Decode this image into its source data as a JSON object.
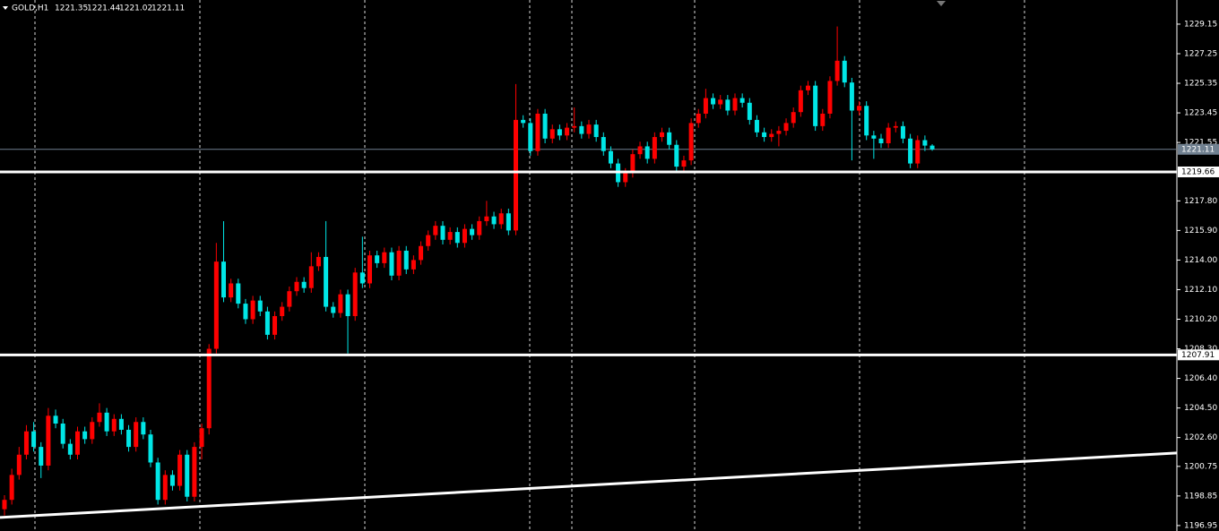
{
  "chart_data": {
    "type": "candlestick",
    "symbol": "GOLD,H1",
    "ylim": [
      1196.6,
      1230.7
    ],
    "yticks": [
      1229.15,
      1227.25,
      1225.35,
      1223.45,
      1221.55,
      {
        "value": 1217.8,
        "label": "1217.80"
      },
      {
        "value": 1215.9,
        "label": "1215.90"
      },
      {
        "value": 1214,
        "label": "1214.00"
      },
      {
        "value": 1212.1,
        "label": "1212.10"
      },
      {
        "value": 1210.2,
        "label": "1210.20"
      },
      {
        "value": 1208.3,
        "label": "1208.30"
      },
      {
        "value": 1206.4,
        "label": "1206.40"
      },
      {
        "value": 1204.5,
        "label": "1204.50"
      },
      {
        "value": 1202.6,
        "label": "1202.60"
      },
      1200.75,
      1198.85,
      1196.95
    ],
    "up_color": "#ff0000",
    "down_color": "#00e6e6",
    "levels": [
      1219.66,
      1207.91
    ],
    "bid": 1221.11,
    "trendline": [
      1197.47,
      1201.61
    ],
    "candles": [
      [
        1198.0,
        1198.9,
        1197.6,
        1198.6
      ],
      [
        1198.6,
        1200.6,
        1198.3,
        1200.2
      ],
      [
        1200.2,
        1202.0,
        1199.9,
        1201.5
      ],
      [
        1201.5,
        1203.4,
        1201.2,
        1203.0
      ],
      [
        1203.0,
        1203.6,
        1201.7,
        1202.0
      ],
      [
        1202.0,
        1202.3,
        1200.0,
        1200.8
      ],
      [
        1200.8,
        1204.5,
        1200.5,
        1204.0
      ],
      [
        1204.0,
        1204.4,
        1203.2,
        1203.5
      ],
      [
        1203.5,
        1203.8,
        1201.9,
        1202.2
      ],
      [
        1202.2,
        1202.5,
        1201.2,
        1201.5
      ],
      [
        1201.5,
        1203.3,
        1201.2,
        1203.0
      ],
      [
        1203.0,
        1203.3,
        1202.2,
        1202.5
      ],
      [
        1202.5,
        1203.9,
        1202.2,
        1203.6
      ],
      [
        1203.6,
        1204.8,
        1203.3,
        1204.2
      ],
      [
        1204.2,
        1204.5,
        1202.7,
        1203.0
      ],
      [
        1203.0,
        1204.1,
        1202.7,
        1203.8
      ],
      [
        1203.8,
        1204.1,
        1202.8,
        1203.1
      ],
      [
        1203.1,
        1203.4,
        1201.7,
        1202.0
      ],
      [
        1202.0,
        1203.9,
        1201.7,
        1203.6
      ],
      [
        1203.6,
        1203.9,
        1202.5,
        1202.8
      ],
      [
        1202.8,
        1203.1,
        1200.7,
        1201.0
      ],
      [
        1201.0,
        1201.3,
        1198.3,
        1198.6
      ],
      [
        1198.6,
        1200.5,
        1198.3,
        1200.2
      ],
      [
        1200.2,
        1200.5,
        1199.2,
        1199.5
      ],
      [
        1199.5,
        1201.8,
        1199.2,
        1201.5
      ],
      [
        1201.5,
        1201.8,
        1198.5,
        1198.8
      ],
      [
        1198.8,
        1202.3,
        1198.5,
        1202.0
      ],
      [
        1202.0,
        1203.5,
        1201.2,
        1203.2
      ],
      [
        1203.2,
        1208.6,
        1202.8,
        1208.3
      ],
      [
        1208.3,
        1215.1,
        1208.0,
        1213.9
      ],
      [
        1213.9,
        1216.5,
        1211.3,
        1211.6
      ],
      [
        1211.6,
        1212.8,
        1211.3,
        1212.5
      ],
      [
        1212.5,
        1212.8,
        1210.9,
        1211.2
      ],
      [
        1211.2,
        1211.5,
        1209.9,
        1210.2
      ],
      [
        1210.2,
        1211.7,
        1209.9,
        1211.4
      ],
      [
        1211.4,
        1211.7,
        1210.4,
        1210.7
      ],
      [
        1210.7,
        1211.0,
        1208.9,
        1209.2
      ],
      [
        1209.2,
        1210.7,
        1208.9,
        1210.4
      ],
      [
        1210.4,
        1211.3,
        1210.1,
        1211.0
      ],
      [
        1211.0,
        1212.3,
        1210.7,
        1212.0
      ],
      [
        1212.0,
        1212.9,
        1211.7,
        1212.6
      ],
      [
        1212.6,
        1212.9,
        1211.9,
        1212.2
      ],
      [
        1212.2,
        1214.5,
        1211.9,
        1213.6
      ],
      [
        1213.6,
        1214.5,
        1213.3,
        1214.2
      ],
      [
        1214.2,
        1216.5,
        1210.7,
        1211.0
      ],
      [
        1211.0,
        1211.3,
        1210.3,
        1210.6
      ],
      [
        1210.6,
        1212.1,
        1210.3,
        1211.8
      ],
      [
        1211.8,
        1212.1,
        1208.0,
        1210.4
      ],
      [
        1210.4,
        1213.5,
        1210.1,
        1213.2
      ],
      [
        1213.2,
        1215.5,
        1212.2,
        1212.5
      ],
      [
        1212.5,
        1214.6,
        1212.2,
        1214.3
      ],
      [
        1214.3,
        1214.6,
        1213.5,
        1213.8
      ],
      [
        1213.8,
        1214.8,
        1213.5,
        1214.5
      ],
      [
        1214.5,
        1214.8,
        1212.7,
        1213.0
      ],
      [
        1213.0,
        1214.9,
        1212.7,
        1214.6
      ],
      [
        1214.6,
        1214.9,
        1213.1,
        1213.4
      ],
      [
        1213.4,
        1214.3,
        1213.1,
        1214.0
      ],
      [
        1214.0,
        1215.2,
        1213.7,
        1214.9
      ],
      [
        1214.9,
        1215.9,
        1214.6,
        1215.6
      ],
      [
        1215.6,
        1216.5,
        1215.3,
        1216.2
      ],
      [
        1216.2,
        1216.5,
        1215.0,
        1215.3
      ],
      [
        1215.3,
        1216.1,
        1215.0,
        1215.8
      ],
      [
        1215.8,
        1216.1,
        1214.8,
        1215.1
      ],
      [
        1215.1,
        1216.3,
        1214.8,
        1216.0
      ],
      [
        1216.0,
        1216.3,
        1215.3,
        1215.6
      ],
      [
        1215.6,
        1216.8,
        1215.3,
        1216.5
      ],
      [
        1216.5,
        1217.8,
        1216.2,
        1216.8
      ],
      [
        1216.8,
        1217.1,
        1216.0,
        1216.3
      ],
      [
        1216.3,
        1217.3,
        1216.0,
        1217.0
      ],
      [
        1217.0,
        1217.3,
        1215.6,
        1215.9
      ],
      [
        1215.9,
        1225.3,
        1215.6,
        1223.0
      ],
      [
        1223.0,
        1223.3,
        1222.5,
        1222.8
      ],
      [
        1222.8,
        1223.1,
        1220.7,
        1221.0
      ],
      [
        1221.0,
        1223.7,
        1220.7,
        1223.4
      ],
      [
        1223.4,
        1223.7,
        1221.5,
        1221.8
      ],
      [
        1221.8,
        1222.7,
        1221.5,
        1222.4
      ],
      [
        1222.4,
        1222.7,
        1221.7,
        1222.0
      ],
      [
        1222.0,
        1222.8,
        1221.7,
        1222.5
      ],
      [
        1222.5,
        1223.8,
        1222.2,
        1222.6
      ],
      [
        1222.6,
        1222.9,
        1221.8,
        1222.1
      ],
      [
        1222.1,
        1223.0,
        1221.8,
        1222.7
      ],
      [
        1222.7,
        1223.0,
        1221.6,
        1221.9
      ],
      [
        1221.9,
        1222.2,
        1220.7,
        1221.0
      ],
      [
        1221.0,
        1221.3,
        1219.9,
        1220.2
      ],
      [
        1220.2,
        1220.5,
        1218.7,
        1219.0
      ],
      [
        1219.0,
        1219.9,
        1218.7,
        1219.6
      ],
      [
        1219.6,
        1221.1,
        1219.3,
        1220.8
      ],
      [
        1220.8,
        1221.6,
        1220.5,
        1221.3
      ],
      [
        1221.3,
        1221.6,
        1220.2,
        1220.5
      ],
      [
        1220.5,
        1222.2,
        1220.2,
        1221.9
      ],
      [
        1221.9,
        1222.5,
        1221.6,
        1222.2
      ],
      [
        1222.2,
        1222.5,
        1221.1,
        1221.4
      ],
      [
        1221.4,
        1221.7,
        1219.7,
        1220.0
      ],
      [
        1220.0,
        1220.7,
        1219.6,
        1220.4
      ],
      [
        1220.4,
        1223.1,
        1220.1,
        1222.8
      ],
      [
        1222.8,
        1223.7,
        1222.5,
        1223.4
      ],
      [
        1223.4,
        1225.0,
        1223.1,
        1224.4
      ],
      [
        1224.4,
        1224.7,
        1223.7,
        1224.0
      ],
      [
        1224.0,
        1224.6,
        1223.7,
        1224.3
      ],
      [
        1224.3,
        1224.6,
        1223.3,
        1223.6
      ],
      [
        1223.6,
        1224.7,
        1223.3,
        1224.4
      ],
      [
        1224.4,
        1224.7,
        1223.8,
        1224.1
      ],
      [
        1224.1,
        1224.4,
        1222.7,
        1223.0
      ],
      [
        1223.0,
        1223.3,
        1221.9,
        1222.2
      ],
      [
        1222.2,
        1222.5,
        1221.6,
        1221.9
      ],
      [
        1221.9,
        1222.4,
        1221.6,
        1222.1
      ],
      [
        1222.1,
        1222.6,
        1221.3,
        1222.3
      ],
      [
        1222.3,
        1223.1,
        1222.0,
        1222.8
      ],
      [
        1222.8,
        1223.8,
        1222.5,
        1223.5
      ],
      [
        1223.5,
        1225.2,
        1223.2,
        1224.9
      ],
      [
        1224.9,
        1225.5,
        1224.6,
        1225.2
      ],
      [
        1225.2,
        1225.5,
        1222.3,
        1222.6
      ],
      [
        1222.6,
        1223.7,
        1222.3,
        1223.4
      ],
      [
        1223.4,
        1225.8,
        1223.1,
        1225.5
      ],
      [
        1225.5,
        1229.0,
        1225.2,
        1226.8
      ],
      [
        1226.8,
        1227.1,
        1225.1,
        1225.4
      ],
      [
        1225.4,
        1225.7,
        1220.4,
        1223.6
      ],
      [
        1223.6,
        1224.2,
        1223.3,
        1223.9
      ],
      [
        1223.9,
        1224.2,
        1221.7,
        1222.0
      ],
      [
        1222.0,
        1222.3,
        1220.5,
        1221.8
      ],
      [
        1221.8,
        1222.1,
        1221.2,
        1221.5
      ],
      [
        1221.5,
        1222.8,
        1221.2,
        1222.5
      ],
      [
        1222.5,
        1222.9,
        1222.2,
        1222.6
      ],
      [
        1222.6,
        1222.9,
        1221.5,
        1221.8
      ],
      [
        1221.8,
        1222.1,
        1219.9,
        1220.2
      ],
      [
        1220.2,
        1222.0,
        1219.9,
        1221.7
      ],
      [
        1221.7,
        1222.0,
        1221.0,
        1221.35
      ],
      [
        1221.35,
        1221.44,
        1221.02,
        1221.11
      ]
    ]
  }
}
